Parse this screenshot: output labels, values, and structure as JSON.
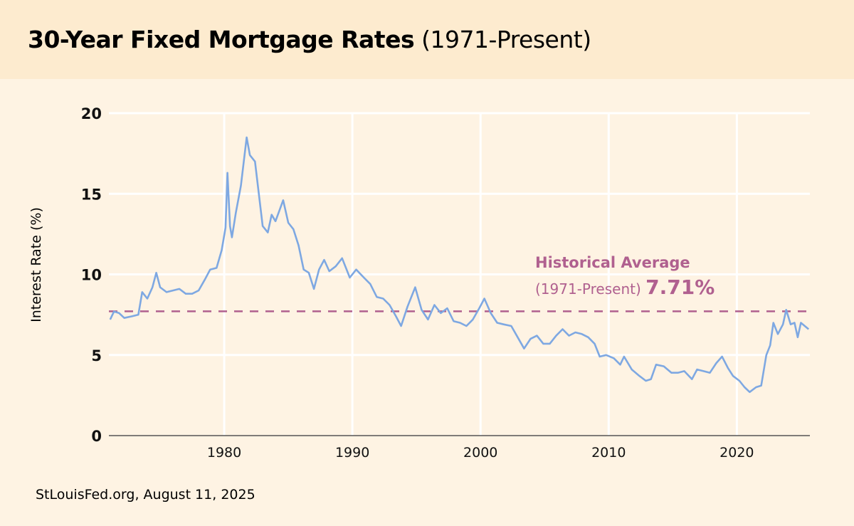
{
  "header": {
    "title_bold": "30-Year Fixed Mortgage Rates",
    "title_sub": "(1971-Present)"
  },
  "source": "StLouisFed.org, August 11, 2025",
  "colors": {
    "line": "#7ea8e2",
    "average": "#b0608f",
    "header_bg": "#fdebcf",
    "background": "#fef3e3"
  },
  "chart_data": {
    "type": "line",
    "title": "30-Year Fixed Mortgage Rates (1971-Present)",
    "xlabel": "",
    "ylabel": "Interest Rate (%)",
    "xlim": [
      1971,
      2025.7
    ],
    "ylim": [
      0,
      20
    ],
    "xticks": [
      "1980",
      "1990",
      "2000",
      "2010",
      "2020"
    ],
    "yticks": [
      "0",
      "5",
      "10",
      "15",
      "20"
    ],
    "grid": true,
    "series": [
      {
        "points": [
          [
            1971.1,
            7.2
          ],
          [
            1971.4,
            7.7
          ],
          [
            1971.8,
            7.6
          ],
          [
            1972.2,
            7.3
          ],
          [
            1972.8,
            7.4
          ],
          [
            1973.3,
            7.5
          ],
          [
            1973.6,
            8.9
          ],
          [
            1974.0,
            8.5
          ],
          [
            1974.4,
            9.2
          ],
          [
            1974.7,
            10.1
          ],
          [
            1975.0,
            9.2
          ],
          [
            1975.5,
            8.9
          ],
          [
            1976.0,
            9.0
          ],
          [
            1976.5,
            9.1
          ],
          [
            1977.0,
            8.8
          ],
          [
            1977.5,
            8.8
          ],
          [
            1978.0,
            9.0
          ],
          [
            1978.5,
            9.7
          ],
          [
            1978.9,
            10.3
          ],
          [
            1979.4,
            10.4
          ],
          [
            1979.8,
            11.5
          ],
          [
            1980.1,
            12.9
          ],
          [
            1980.25,
            16.3
          ],
          [
            1980.45,
            13.0
          ],
          [
            1980.6,
            12.3
          ],
          [
            1980.9,
            13.8
          ],
          [
            1981.3,
            15.5
          ],
          [
            1981.75,
            18.5
          ],
          [
            1982.0,
            17.4
          ],
          [
            1982.4,
            17.0
          ],
          [
            1982.7,
            15.0
          ],
          [
            1983.0,
            13.0
          ],
          [
            1983.4,
            12.6
          ],
          [
            1983.7,
            13.7
          ],
          [
            1984.0,
            13.3
          ],
          [
            1984.6,
            14.6
          ],
          [
            1985.0,
            13.2
          ],
          [
            1985.4,
            12.8
          ],
          [
            1985.8,
            11.8
          ],
          [
            1986.2,
            10.3
          ],
          [
            1986.6,
            10.1
          ],
          [
            1987.0,
            9.1
          ],
          [
            1987.4,
            10.3
          ],
          [
            1987.8,
            10.9
          ],
          [
            1988.2,
            10.2
          ],
          [
            1988.7,
            10.5
          ],
          [
            1989.2,
            11.0
          ],
          [
            1989.8,
            9.8
          ],
          [
            1990.3,
            10.3
          ],
          [
            1990.9,
            9.8
          ],
          [
            1991.4,
            9.4
          ],
          [
            1991.9,
            8.6
          ],
          [
            1992.4,
            8.5
          ],
          [
            1992.9,
            8.1
          ],
          [
            1993.4,
            7.4
          ],
          [
            1993.8,
            6.8
          ],
          [
            1994.3,
            8.0
          ],
          [
            1994.9,
            9.2
          ],
          [
            1995.4,
            7.8
          ],
          [
            1995.9,
            7.2
          ],
          [
            1996.4,
            8.1
          ],
          [
            1996.9,
            7.6
          ],
          [
            1997.4,
            7.9
          ],
          [
            1997.9,
            7.1
          ],
          [
            1998.4,
            7.0
          ],
          [
            1998.9,
            6.8
          ],
          [
            1999.4,
            7.2
          ],
          [
            1999.9,
            7.9
          ],
          [
            2000.3,
            8.5
          ],
          [
            2000.8,
            7.6
          ],
          [
            2001.3,
            7.0
          ],
          [
            2001.8,
            6.9
          ],
          [
            2002.4,
            6.8
          ],
          [
            2002.9,
            6.1
          ],
          [
            2003.4,
            5.4
          ],
          [
            2003.9,
            6.0
          ],
          [
            2004.4,
            6.2
          ],
          [
            2004.9,
            5.7
          ],
          [
            2005.4,
            5.7
          ],
          [
            2005.9,
            6.2
          ],
          [
            2006.4,
            6.6
          ],
          [
            2006.9,
            6.2
          ],
          [
            2007.4,
            6.4
          ],
          [
            2007.9,
            6.3
          ],
          [
            2008.4,
            6.1
          ],
          [
            2008.9,
            5.7
          ],
          [
            2009.3,
            4.9
          ],
          [
            2009.8,
            5.0
          ],
          [
            2010.4,
            4.8
          ],
          [
            2010.9,
            4.4
          ],
          [
            2011.2,
            4.9
          ],
          [
            2011.8,
            4.1
          ],
          [
            2012.4,
            3.7
          ],
          [
            2012.9,
            3.4
          ],
          [
            2013.3,
            3.5
          ],
          [
            2013.7,
            4.4
          ],
          [
            2014.3,
            4.3
          ],
          [
            2014.9,
            3.9
          ],
          [
            2015.4,
            3.9
          ],
          [
            2015.9,
            4.0
          ],
          [
            2016.5,
            3.5
          ],
          [
            2016.9,
            4.1
          ],
          [
            2017.4,
            4.0
          ],
          [
            2017.9,
            3.9
          ],
          [
            2018.4,
            4.5
          ],
          [
            2018.85,
            4.9
          ],
          [
            2019.3,
            4.2
          ],
          [
            2019.7,
            3.7
          ],
          [
            2020.2,
            3.4
          ],
          [
            2020.6,
            3.0
          ],
          [
            2021.0,
            2.7
          ],
          [
            2021.5,
            3.0
          ],
          [
            2021.9,
            3.1
          ],
          [
            2022.3,
            5.0
          ],
          [
            2022.6,
            5.6
          ],
          [
            2022.85,
            7.0
          ],
          [
            2023.2,
            6.3
          ],
          [
            2023.6,
            6.9
          ],
          [
            2023.85,
            7.8
          ],
          [
            2024.2,
            6.9
          ],
          [
            2024.5,
            7.0
          ],
          [
            2024.75,
            6.1
          ],
          [
            2025.0,
            7.0
          ],
          [
            2025.3,
            6.8
          ],
          [
            2025.6,
            6.6
          ]
        ]
      }
    ],
    "annotations": [
      {
        "line1": "Historical Average",
        "line2": "(1971-Present)",
        "value_label": "7.71%",
        "y": 7.71,
        "style": "dashed"
      }
    ]
  }
}
